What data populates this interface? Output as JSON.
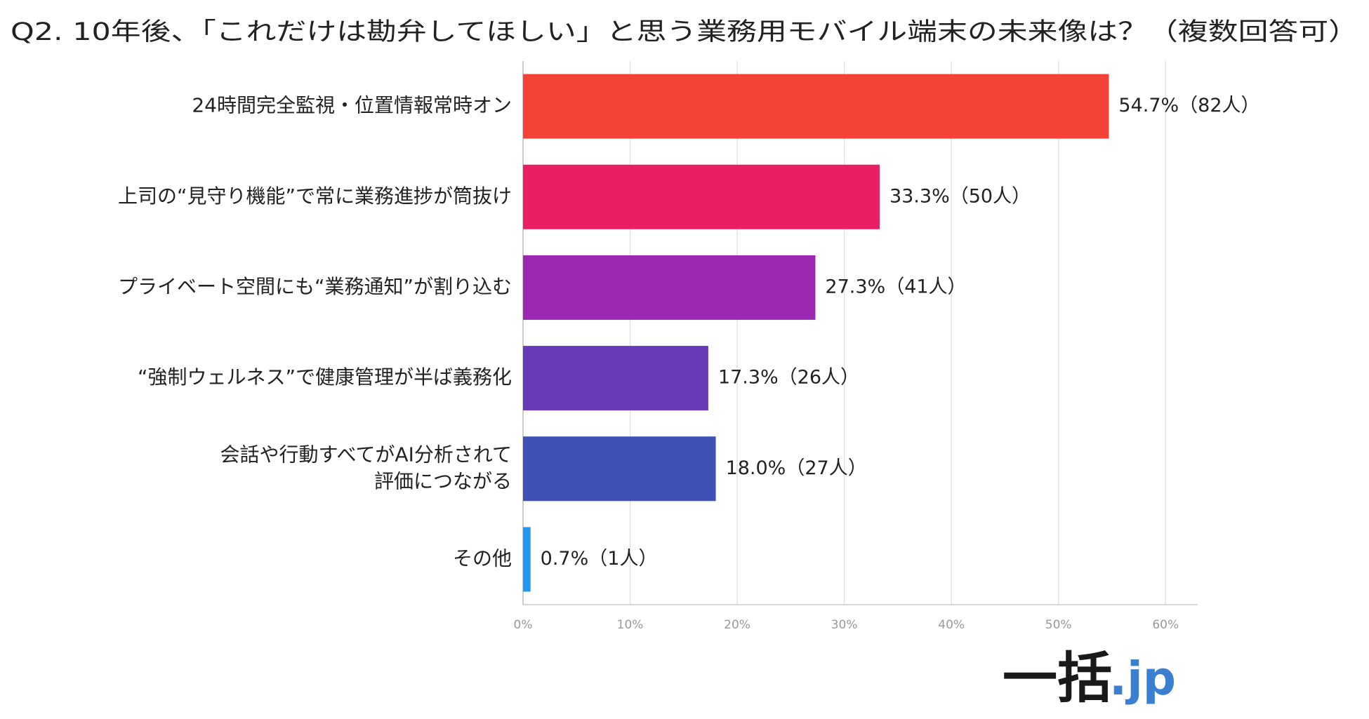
{
  "chart_data": {
    "type": "barh",
    "title": "Q2. 10年後、「これだけは勘弁してほしい」と思う業務用モバイル端末の未来像は？（複数回答可）",
    "categories": [
      "24時間完全監視・位置情報常時オン",
      "上司の“見守り機能”で常に業務進捗が筒抜け",
      "プライベート空間にも“業務通知”が割り込む",
      "“強制ウェルネス”で健康管理が半ば義務化",
      "会話や行動すべてがAI分析されて\n評価につながる",
      "その他"
    ],
    "values": [
      54.7,
      33.3,
      27.3,
      17.3,
      18.0,
      0.7
    ],
    "value_labels": [
      "54.7%（82人）",
      "33.3%（50人）",
      "27.3%（41人）",
      "17.3%（26人）",
      "18.0%（27人）",
      "0.7%（1人）"
    ],
    "colors": [
      "#f44336",
      "#e91e63",
      "#9c27b0",
      "#673ab7",
      "#3f51b5",
      "#2196f3"
    ],
    "xlim": [
      0,
      63
    ],
    "xticks": [
      {
        "value": 0,
        "label": "0%"
      },
      {
        "value": 10,
        "label": "10%"
      },
      {
        "value": 20,
        "label": "20%"
      },
      {
        "value": 30,
        "label": "30%"
      },
      {
        "value": 40,
        "label": "40%"
      },
      {
        "value": 50,
        "label": "50%"
      },
      {
        "value": 60,
        "label": "60%"
      }
    ],
    "grid": true,
    "logo": {
      "main": "一括",
      "domain": ".jp"
    }
  }
}
